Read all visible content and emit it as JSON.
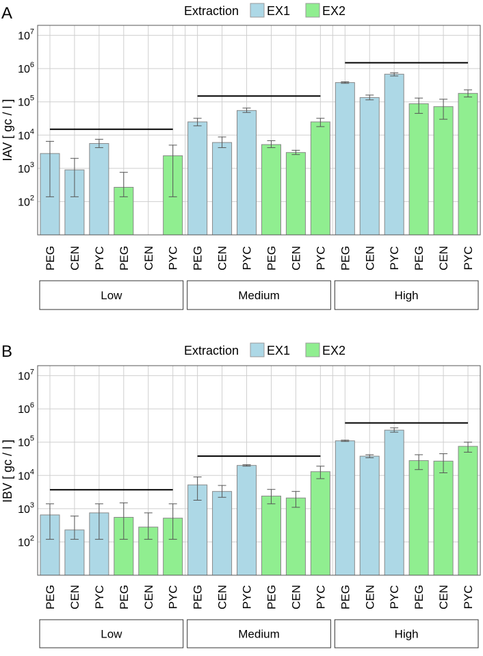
{
  "colors": {
    "ex1": "#add8e6",
    "ex2": "#90ee90",
    "grid": "#cfcfcf",
    "frame": "#555555",
    "errbar": "#555555",
    "sigline": "#000000"
  },
  "chart_data": [
    {
      "panel_letter": "A",
      "type": "bar",
      "y_scale": "log10",
      "ylim": [
        10,
        20000000
      ],
      "ylabel": "IAV [ gc / l ]",
      "y_ticks": [
        {
          "value": 100,
          "base": "10",
          "exp": "2"
        },
        {
          "value": 1000,
          "base": "10",
          "exp": "3"
        },
        {
          "value": 10000,
          "base": "10",
          "exp": "4"
        },
        {
          "value": 100000,
          "base": "10",
          "exp": "5"
        },
        {
          "value": 1000000,
          "base": "10",
          "exp": "6"
        },
        {
          "value": 10000000,
          "base": "10",
          "exp": "7"
        }
      ],
      "legend": {
        "title": "Extraction",
        "entries": [
          "EX1",
          "EX2"
        ]
      },
      "groups": [
        "Low",
        "Medium",
        "High"
      ],
      "categories": [
        "PEG",
        "CEN",
        "PYC",
        "PEG",
        "CEN",
        "PYC"
      ],
      "series_per_category": [
        "EX1",
        "EX1",
        "EX1",
        "EX2",
        "EX2",
        "EX2"
      ],
      "values": [
        [
          2800,
          900,
          5600,
          270,
          null,
          2400
        ],
        [
          25000,
          6000,
          55000,
          5200,
          3000,
          25000
        ],
        [
          380000,
          135000,
          680000,
          88000,
          72000,
          180000
        ]
      ],
      "error_low": [
        [
          140,
          140,
          4200,
          140,
          null,
          140
        ],
        [
          19000,
          4200,
          48000,
          4200,
          2600,
          18000
        ],
        [
          360000,
          115000,
          600000,
          45000,
          30000,
          140000
        ]
      ],
      "error_high": [
        [
          6500,
          2000,
          7500,
          760,
          null,
          5000
        ],
        [
          32000,
          8800,
          65000,
          6800,
          3500,
          32000
        ],
        [
          400000,
          160000,
          750000,
          130000,
          120000,
          230000
        ]
      ],
      "group_lines": [
        15000,
        150000,
        1500000
      ]
    },
    {
      "panel_letter": "B",
      "type": "bar",
      "y_scale": "log10",
      "ylim": [
        10,
        20000000
      ],
      "ylabel": "IBV [ gc / l ]",
      "y_ticks": [
        {
          "value": 100,
          "base": "10",
          "exp": "2"
        },
        {
          "value": 1000,
          "base": "10",
          "exp": "3"
        },
        {
          "value": 10000,
          "base": "10",
          "exp": "4"
        },
        {
          "value": 100000,
          "base": "10",
          "exp": "5"
        },
        {
          "value": 1000000,
          "base": "10",
          "exp": "6"
        },
        {
          "value": 10000000,
          "base": "10",
          "exp": "7"
        }
      ],
      "legend": {
        "title": "Extraction",
        "entries": [
          "EX1",
          "EX2"
        ]
      },
      "groups": [
        "Low",
        "Medium",
        "High"
      ],
      "categories": [
        "PEG",
        "CEN",
        "PYC",
        "PEG",
        "CEN",
        "PYC"
      ],
      "series_per_category": [
        "EX1",
        "EX1",
        "EX1",
        "EX2",
        "EX2",
        "EX2"
      ],
      "values": [
        [
          650,
          230,
          750,
          550,
          280,
          520
        ],
        [
          5200,
          3300,
          20000,
          2400,
          2100,
          13000
        ],
        [
          110000,
          38000,
          230000,
          28000,
          27000,
          75000
        ]
      ],
      "error_low": [
        [
          120,
          120,
          120,
          120,
          120,
          120
        ],
        [
          1800,
          2200,
          19000,
          1400,
          1100,
          8000
        ],
        [
          105000,
          34000,
          200000,
          15000,
          12000,
          50000
        ]
      ],
      "error_high": [
        [
          1400,
          600,
          1400,
          1500,
          750,
          1400
        ],
        [
          9000,
          5000,
          21000,
          3800,
          3300,
          19000
        ],
        [
          115000,
          42000,
          270000,
          42000,
          45000,
          100000
        ]
      ],
      "group_lines": [
        3700,
        38000,
        380000
      ]
    }
  ]
}
